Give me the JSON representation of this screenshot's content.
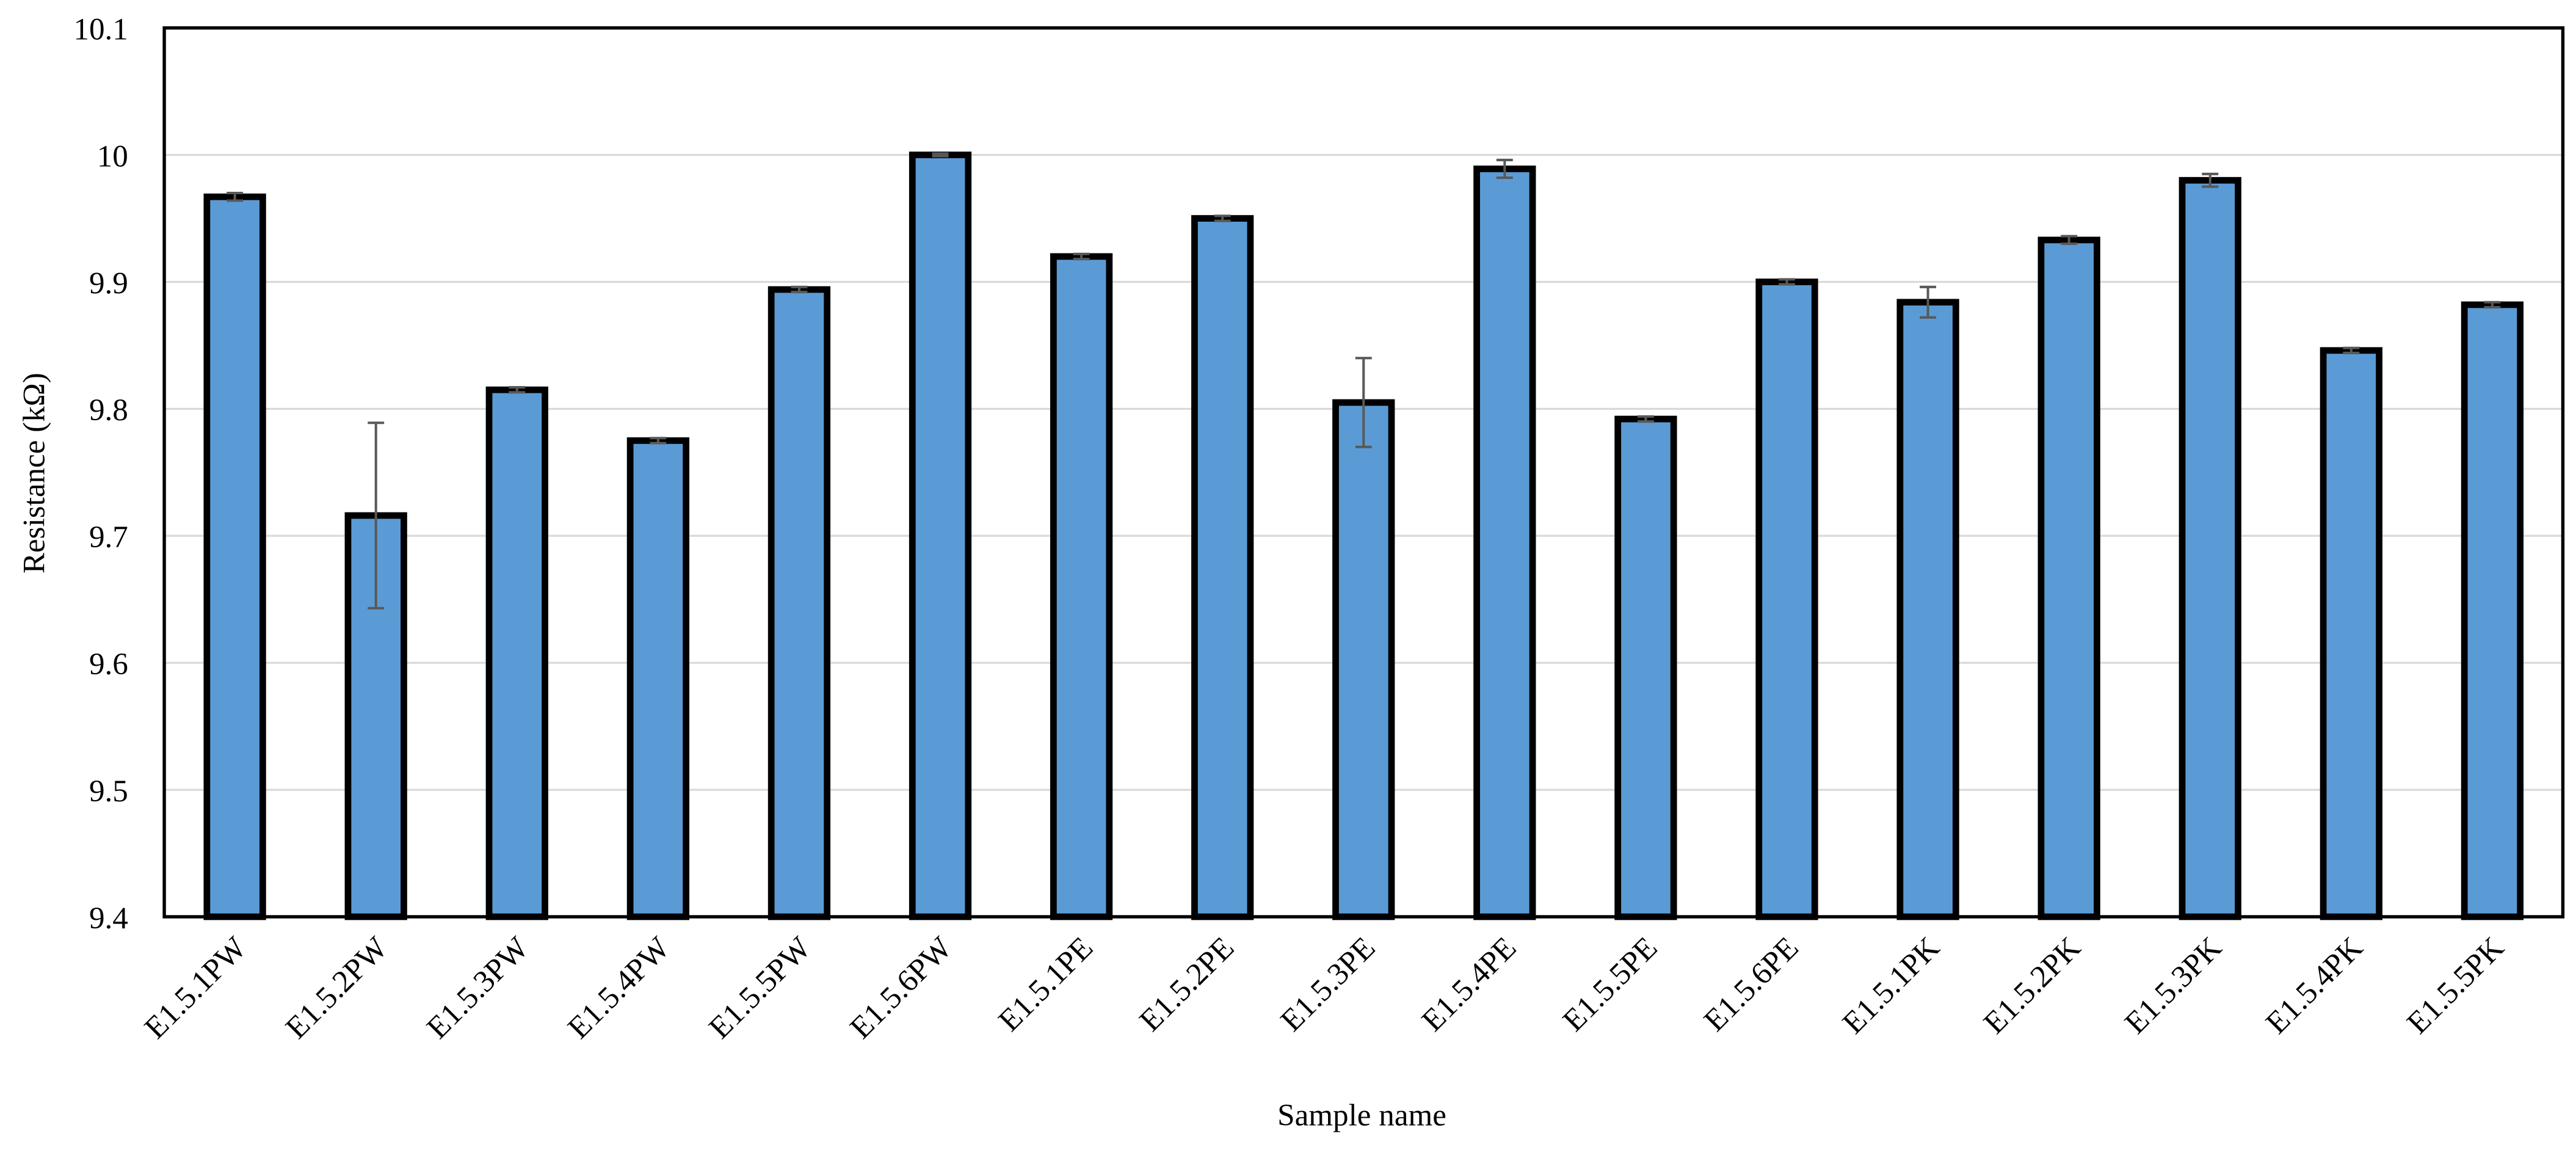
{
  "chart_data": {
    "type": "bar",
    "x_label": "Sample name",
    "y_label": "Resistance (kΩ)",
    "categories": [
      "E1.5.1PW",
      "E1.5.2PW",
      "E1.5.3PW",
      "E1.5.4PW",
      "E1.5.5PW",
      "E1.5.6PW",
      "E1.5.1PE",
      "E1.5.2PE",
      "E1.5.3PE",
      "E1.5.4PE",
      "E1.5.5PE",
      "E1.5.6PE",
      "E1.5.1PK",
      "E1.5.2PK",
      "E1.5.3PK",
      "E1.5.4PK",
      "E1.5.5PK"
    ],
    "values": [
      9.967,
      9.716,
      9.815,
      9.775,
      9.894,
      10.0,
      9.92,
      9.95,
      9.805,
      9.989,
      9.792,
      9.9,
      9.884,
      9.933,
      9.98,
      9.846,
      9.882
    ],
    "errors": [
      0.003,
      0.073,
      0.002,
      0.002,
      0.002,
      0.001,
      0.002,
      0.002,
      0.035,
      0.007,
      0.002,
      0.002,
      0.012,
      0.003,
      0.005,
      0.002,
      0.002
    ],
    "color": "#5b9bd5",
    "ylim": [
      9.4,
      10.1
    ],
    "yticks": [
      9.4,
      9.5,
      9.6,
      9.7,
      9.8,
      9.9,
      10,
      10.1
    ],
    "grid": true
  }
}
